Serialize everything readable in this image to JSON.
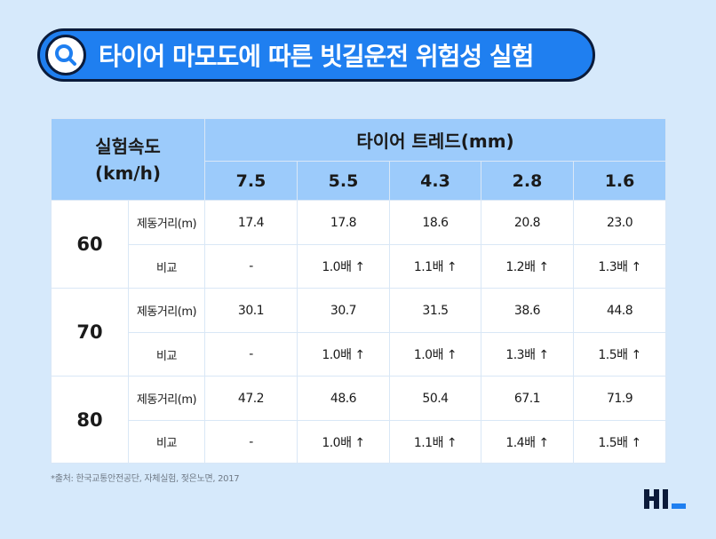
{
  "title": "타이어 마모도에 따른 빗길운전 위험성 실험",
  "table": {
    "speed_header": [
      "실험속도",
      "(km/h)"
    ],
    "tread_header": "타이어 트레드(mm)",
    "tread_values": [
      "7.5",
      "5.5",
      "4.3",
      "2.8",
      "1.6"
    ],
    "groups": [
      {
        "speed": "60",
        "rows": [
          {
            "label": "제동거리(m)",
            "values": [
              "17.4",
              "17.8",
              "18.6",
              "20.8",
              "23.0"
            ]
          },
          {
            "label": "비교",
            "values": [
              "-",
              "1.0배 ↑",
              "1.1배 ↑",
              "1.2배 ↑",
              "1.3배 ↑"
            ]
          }
        ]
      },
      {
        "speed": "70",
        "rows": [
          {
            "label": "제동거리(m)",
            "values": [
              "30.1",
              "30.7",
              "31.5",
              "38.6",
              "44.8"
            ]
          },
          {
            "label": "비교",
            "values": [
              "-",
              "1.0배 ↑",
              "1.0배 ↑",
              "1.3배 ↑",
              "1.5배 ↑"
            ]
          }
        ]
      },
      {
        "speed": "80",
        "rows": [
          {
            "label": "제동거리(m)",
            "values": [
              "47.2",
              "48.6",
              "50.4",
              "67.1",
              "71.9"
            ]
          },
          {
            "label": "비교",
            "values": [
              "-",
              "1.0배 ↑",
              "1.1배 ↑",
              "1.4배 ↑",
              "1.5배 ↑"
            ]
          }
        ]
      }
    ]
  },
  "footnote": "*출처: 한국교통안전공단, 자체실험, 젖은노면, 2017",
  "colors": {
    "title_bg": "#1f7ff0",
    "header_bg": "#9ccbfb",
    "page_bg": "#d6e9fb",
    "logo_accent": "#1f7ff0"
  },
  "icons": {
    "title_icon": "search-icon",
    "brand": "hl-logo"
  }
}
